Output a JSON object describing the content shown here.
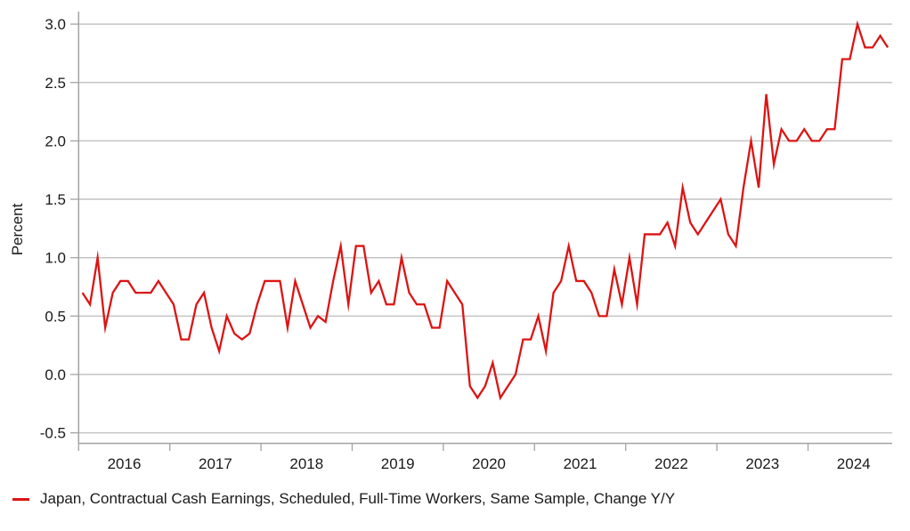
{
  "chart_data": {
    "type": "line",
    "title": "",
    "xlabel": "",
    "ylabel": "Percent",
    "ylim": [
      -0.5,
      3.0
    ],
    "grid": true,
    "legend_position": "bottom-left",
    "y_ticks": [
      3.0,
      2.5,
      2.0,
      1.5,
      1.0,
      0.5,
      0.0,
      -0.5
    ],
    "y_tick_labels": [
      "3.0",
      "2.5",
      "2.0",
      "1.5",
      "1.0",
      "0.5",
      "0.0",
      "-0.5"
    ],
    "x_tick_labels": [
      "2016",
      "2017",
      "2018",
      "2019",
      "2020",
      "2021",
      "2022",
      "2023",
      "2024"
    ],
    "x_start_month": "2016-01",
    "x_end_month": "2024-11",
    "frequency": "monthly",
    "series": [
      {
        "name": "Japan, Contractual Cash Earnings, Scheduled, Full-Time Workers, Same Sample, Change Y/Y",
        "color": "#dc1413",
        "values": [
          0.7,
          0.6,
          1.0,
          0.4,
          0.7,
          0.8,
          0.8,
          0.7,
          0.7,
          0.7,
          0.8,
          0.7,
          0.6,
          0.3,
          0.3,
          0.6,
          0.7,
          0.4,
          0.2,
          0.5,
          0.35,
          0.3,
          0.35,
          0.6,
          0.8,
          0.8,
          0.8,
          0.4,
          0.8,
          0.6,
          0.4,
          0.5,
          0.45,
          0.8,
          1.1,
          0.6,
          1.1,
          1.1,
          0.7,
          0.8,
          0.6,
          0.6,
          1.0,
          0.7,
          0.6,
          0.6,
          0.4,
          0.4,
          0.8,
          0.7,
          0.6,
          -0.1,
          -0.2,
          -0.1,
          0.1,
          -0.2,
          -0.1,
          0.0,
          0.3,
          0.3,
          0.5,
          0.2,
          0.7,
          0.8,
          1.1,
          0.8,
          0.8,
          0.7,
          0.5,
          0.5,
          0.9,
          0.6,
          1.0,
          0.6,
          1.2,
          1.2,
          1.2,
          1.3,
          1.1,
          1.6,
          1.3,
          1.2,
          1.3,
          1.4,
          1.5,
          1.2,
          1.1,
          1.6,
          2.0,
          1.6,
          2.4,
          1.8,
          2.1,
          2.0,
          2.0,
          2.1,
          2.0,
          2.0,
          2.1,
          2.1,
          2.7,
          2.7,
          3.0,
          2.8,
          2.8,
          2.9,
          2.8
        ]
      }
    ],
    "colors": {
      "line": "#dc1413",
      "gridline": "#c4c4c4",
      "axis": "#a3a3a3",
      "text": "#1a1a1a",
      "background": "#ffffff"
    }
  }
}
